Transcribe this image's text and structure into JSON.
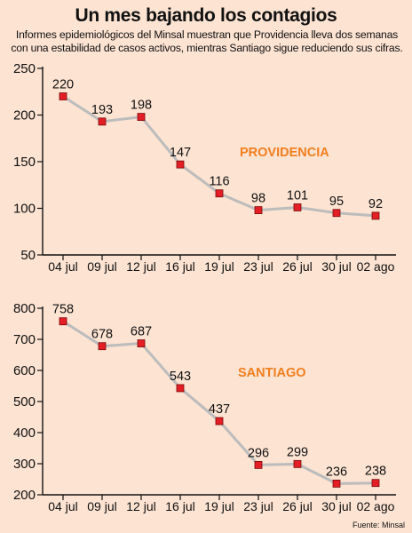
{
  "header": {
    "title": "Un mes bajando los contagios",
    "subtitle": "Informes epidemiológicos del Minsal muestran que Providencia lleva dos semanas con una estabilidad de casos activos, mientras Santiago sigue reduciendo sus cifras."
  },
  "source": "Fuente: Minsal",
  "colors": {
    "line": "#bcbcbc",
    "marker": "#e31e24",
    "label": "#f07f1e",
    "axis": "#111111"
  },
  "chart_data": [
    {
      "type": "line",
      "series_label": "PROVIDENCIA",
      "categories": [
        "04 jul",
        "09 jul",
        "12 jul",
        "16 jul",
        "19 jul",
        "23 jul",
        "26 jul",
        "30 jul",
        "02 ago"
      ],
      "values": [
        220,
        193,
        198,
        147,
        116,
        98,
        101,
        95,
        92
      ],
      "ylim": [
        50,
        250
      ],
      "yticks": [
        50,
        100,
        150,
        200,
        250
      ],
      "grid": false
    },
    {
      "type": "line",
      "series_label": "SANTIAGO",
      "categories": [
        "04 jul",
        "09 jul",
        "12 jul",
        "16 jul",
        "19 jul",
        "23 jul",
        "26 jul",
        "30 jul",
        "02 ago"
      ],
      "values": [
        758,
        678,
        687,
        543,
        437,
        296,
        299,
        236,
        238
      ],
      "ylim": [
        200,
        800
      ],
      "yticks": [
        200,
        300,
        400,
        500,
        600,
        700,
        800
      ],
      "grid": false
    }
  ]
}
